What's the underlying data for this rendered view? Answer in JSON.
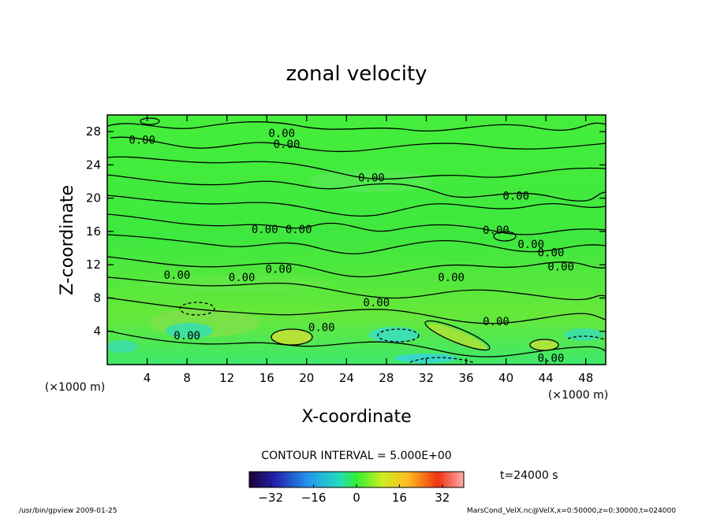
{
  "chart_data": {
    "type": "heatmap",
    "title": "zonal velocity",
    "xlabel": "X-coordinate",
    "ylabel": "Z-coordinate",
    "x_unit": "(×1000 m)",
    "y_unit": "(×1000 m)",
    "xlim": [
      0,
      50
    ],
    "ylim": [
      0,
      30
    ],
    "x_ticks": [
      4,
      8,
      12,
      16,
      20,
      24,
      28,
      32,
      36,
      40,
      44,
      48
    ],
    "y_ticks": [
      4,
      8,
      12,
      16,
      20,
      24,
      28
    ],
    "contour_interval_text": "CONTOUR INTERVAL = 5.000E+00",
    "time_label": "t=24000 s",
    "colorbar": {
      "min": -40,
      "max": 40,
      "ticks": [
        -32,
        -16,
        0,
        16,
        32
      ]
    },
    "contour_labels": [
      {
        "text": "0.00",
        "x": 3.5,
        "y": 27
      },
      {
        "text": "0.00",
        "x": 18.0,
        "y": 26.5
      },
      {
        "text": "0.00",
        "x": 17.5,
        "y": 27.8
      },
      {
        "text": "0.00",
        "x": 26.5,
        "y": 22.5
      },
      {
        "text": "0.00",
        "x": 41.0,
        "y": 20.3
      },
      {
        "text": "0.00",
        "x": 15.8,
        "y": 16.3
      },
      {
        "text": "0.00",
        "x": 19.2,
        "y": 16.3
      },
      {
        "text": "0.00",
        "x": 39.0,
        "y": 16.2
      },
      {
        "text": "0.00",
        "x": 42.5,
        "y": 14.5
      },
      {
        "text": "0.00",
        "x": 44.5,
        "y": 13.5
      },
      {
        "text": "0.00",
        "x": 45.5,
        "y": 11.8
      },
      {
        "text": "0.00",
        "x": 7.0,
        "y": 10.8
      },
      {
        "text": "0.00",
        "x": 13.5,
        "y": 10.5
      },
      {
        "text": "0.00",
        "x": 17.2,
        "y": 11.5
      },
      {
        "text": "0.00",
        "x": 34.5,
        "y": 10.5
      },
      {
        "text": "0.00",
        "x": 27.0,
        "y": 7.5
      },
      {
        "text": "0.00",
        "x": 39.0,
        "y": 5.2
      },
      {
        "text": "0.00",
        "x": 8.0,
        "y": 3.5
      },
      {
        "text": "0.00",
        "x": 21.5,
        "y": 4.5
      },
      {
        "text": "0.00",
        "x": 44.5,
        "y": 0.8
      }
    ]
  },
  "footer": {
    "left": "/usr/bin/gpview  2009-01-25",
    "right": "MarsCond_VelX.nc@VelX,x=0:50000,z=0:30000,t=024000"
  }
}
